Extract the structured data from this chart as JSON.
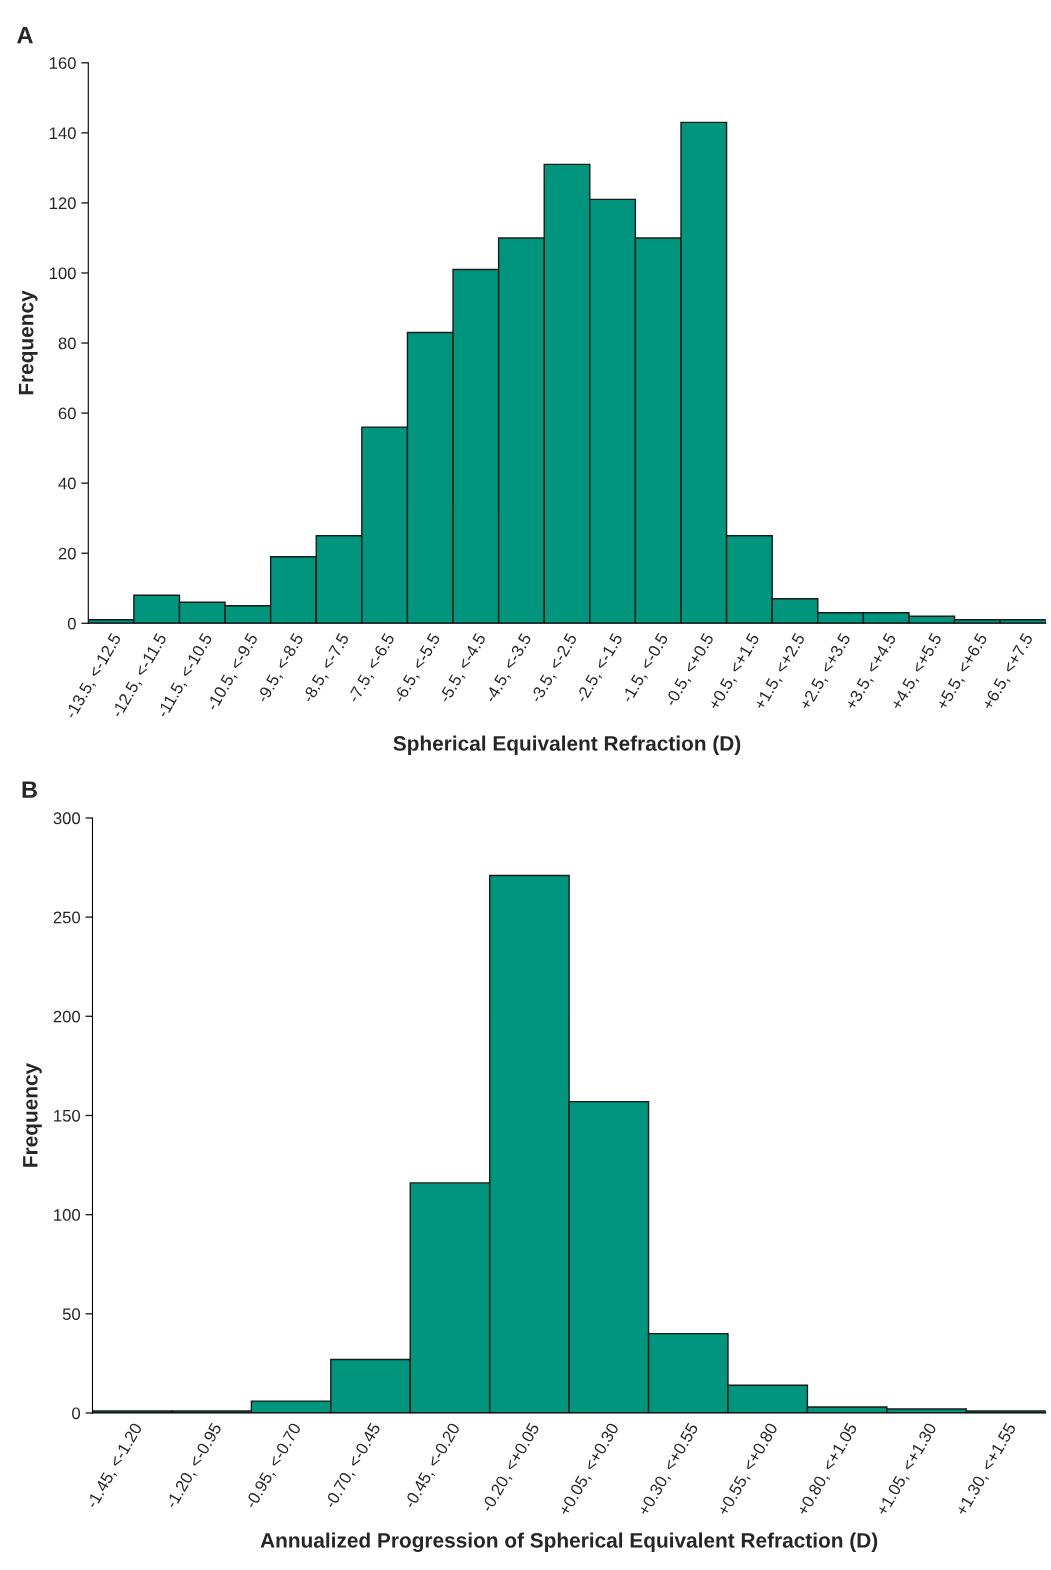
{
  "chart_data": [
    {
      "type": "bar",
      "title": "A",
      "xlabel": "Spherical Equivalent Refraction (D)",
      "ylabel": "Frequency",
      "categories": [
        "-13.5, <-12.5",
        "-12.5, <-11.5",
        "-11.5, <-10.5",
        "-10.5, <-9.5",
        "-9.5, <-8.5",
        "-8.5, <-7.5",
        "-7.5, <-6.5",
        "-6.5, <-5.5",
        "-5.5, <-4.5",
        "-4.5, <-3.5",
        "-3.5, <-2.5",
        "-2.5, <-1.5",
        "-1.5, <-0.5",
        "-0.5, <+0.5",
        "+0.5, <+1.5",
        "+1.5, <+2.5",
        "+2.5, <+3.5",
        "+3.5, <+4.5",
        "+4.5, <+5.5",
        "+5.5, <+6.5",
        "+6.5, <+7.5"
      ],
      "values": [
        1,
        8,
        6,
        5,
        19,
        25,
        56,
        83,
        101,
        110,
        131,
        121,
        110,
        143,
        25,
        7,
        3,
        3,
        2,
        1,
        1
      ],
      "color": "#00957c",
      "ylim": [
        0,
        160
      ],
      "yticks": [
        0,
        20,
        40,
        60,
        80,
        100,
        120,
        140,
        160
      ],
      "grid": false
    },
    {
      "type": "bar",
      "title": "B",
      "xlabel": "Annualized Progression of Spherical Equivalent Refraction (D)",
      "ylabel": "Frequency",
      "categories": [
        "-1.45, <-1.20",
        "-1.20, <-0.95",
        "-0.95, <-0.70",
        "-0.70, <-0.45",
        "-0.45, <-0.20",
        "-0.20, <+0.05",
        "+0.05, <+0.30",
        "+0.30, <+0.55",
        "+0.55, <+0.80",
        "+0.80, <+1.05",
        "+1.05, <+1.30",
        "+1.30, <+1.55"
      ],
      "values": [
        1,
        1,
        6,
        27,
        116,
        271,
        157,
        40,
        14,
        3,
        2,
        1
      ],
      "color": "#00957c",
      "ylim": [
        0,
        300
      ],
      "yticks": [
        0,
        50,
        100,
        150,
        200,
        250,
        300
      ],
      "grid": false
    }
  ]
}
